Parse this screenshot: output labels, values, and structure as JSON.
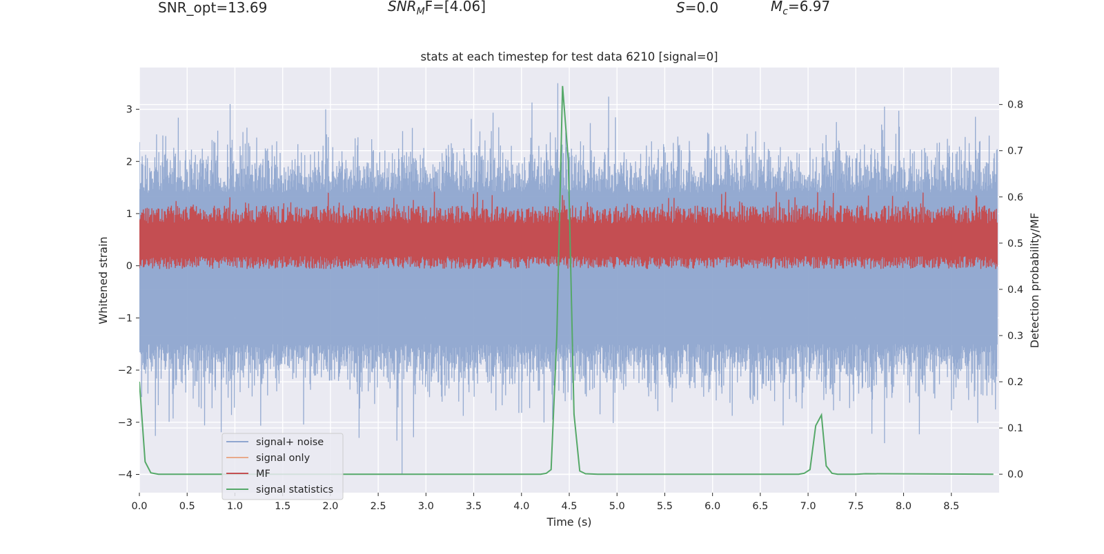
{
  "header": {
    "snr_opt": "SNR_opt=13.69",
    "snr_mf_sym": "SNR",
    "snr_mf_sub": "M",
    "snr_mf_tail": "F=[4.06]",
    "s_sym": "S",
    "s_val": "=0.0",
    "mc_sym": "M",
    "mc_sub": "c",
    "mc_val": "=6.97"
  },
  "chart_data": {
    "type": "line",
    "title": "stats at each timestep for test data 6210 [signal=0]",
    "xlabel": "Time (s)",
    "ylabel": "Whitened strain",
    "y2label": "Detection probability/MF",
    "xlim": [
      0.0,
      9.0
    ],
    "ylim": [
      -4.35,
      3.8
    ],
    "y2lim": [
      -0.04,
      0.88
    ],
    "xticks": [
      "0.0",
      "0.5",
      "1.0",
      "1.5",
      "2.0",
      "2.5",
      "3.0",
      "3.5",
      "4.0",
      "4.5",
      "5.0",
      "5.5",
      "6.0",
      "6.5",
      "7.0",
      "7.5",
      "8.0",
      "8.5"
    ],
    "yticks": [
      "3",
      "2",
      "1",
      "0",
      "−1",
      "−2",
      "−3",
      "−4"
    ],
    "y2ticks": [
      "0.8",
      "0.7",
      "0.6",
      "0.5",
      "0.4",
      "0.3",
      "0.2",
      "0.1",
      "0.0"
    ],
    "legend_position": "lower-left",
    "legend": [
      {
        "label": "signal+ noise",
        "color": "#8fa6cf"
      },
      {
        "label": "signal only",
        "color": "#e8a98a"
      },
      {
        "label": "MF",
        "color": "#c44e52"
      },
      {
        "label": "signal statistics",
        "color": "#55a868"
      }
    ],
    "series": [
      {
        "name": "signal+ noise",
        "axis": "left",
        "description": "whitened noise, roughly symmetric about 0, envelope about +/-1.5 with spikes",
        "approx_envelope": {
          "upper_typical": 1.4,
          "lower_typical": -1.5
        },
        "notable_peaks": [
          {
            "x": 0.95,
            "y": 3.1
          },
          {
            "x": 1.95,
            "y": 3.0
          },
          {
            "x": 4.38,
            "y": 3.5
          },
          {
            "x": 7.8,
            "y": 3.05
          },
          {
            "x": 2.75,
            "y": -4.0
          },
          {
            "x": 2.3,
            "y": -3.3
          },
          {
            "x": 7.8,
            "y": -3.4
          }
        ]
      },
      {
        "name": "MF",
        "axis": "right",
        "description": "matched-filter output, band between about 0.47 and 0.58 (right axis)",
        "band_low": 0.455,
        "band_high": 0.565
      },
      {
        "name": "signal statistics",
        "axis": "right",
        "x": [
          0.0,
          0.06,
          0.12,
          0.2,
          0.3,
          4.2,
          4.26,
          4.31,
          4.37,
          4.43,
          4.49,
          4.55,
          4.61,
          4.67,
          4.8,
          6.9,
          6.96,
          7.02,
          7.08,
          7.14,
          7.19,
          7.25,
          7.31,
          7.5,
          7.6,
          8.94
        ],
        "values": [
          0.2,
          0.027,
          0.003,
          0.0,
          0.0,
          0.0,
          0.002,
          0.01,
          0.3,
          0.84,
          0.68,
          0.13,
          0.007,
          0.001,
          0.0,
          0.0,
          0.002,
          0.01,
          0.105,
          0.128,
          0.018,
          0.002,
          0.0,
          0.0,
          0.001,
          0.0
        ]
      }
    ]
  }
}
